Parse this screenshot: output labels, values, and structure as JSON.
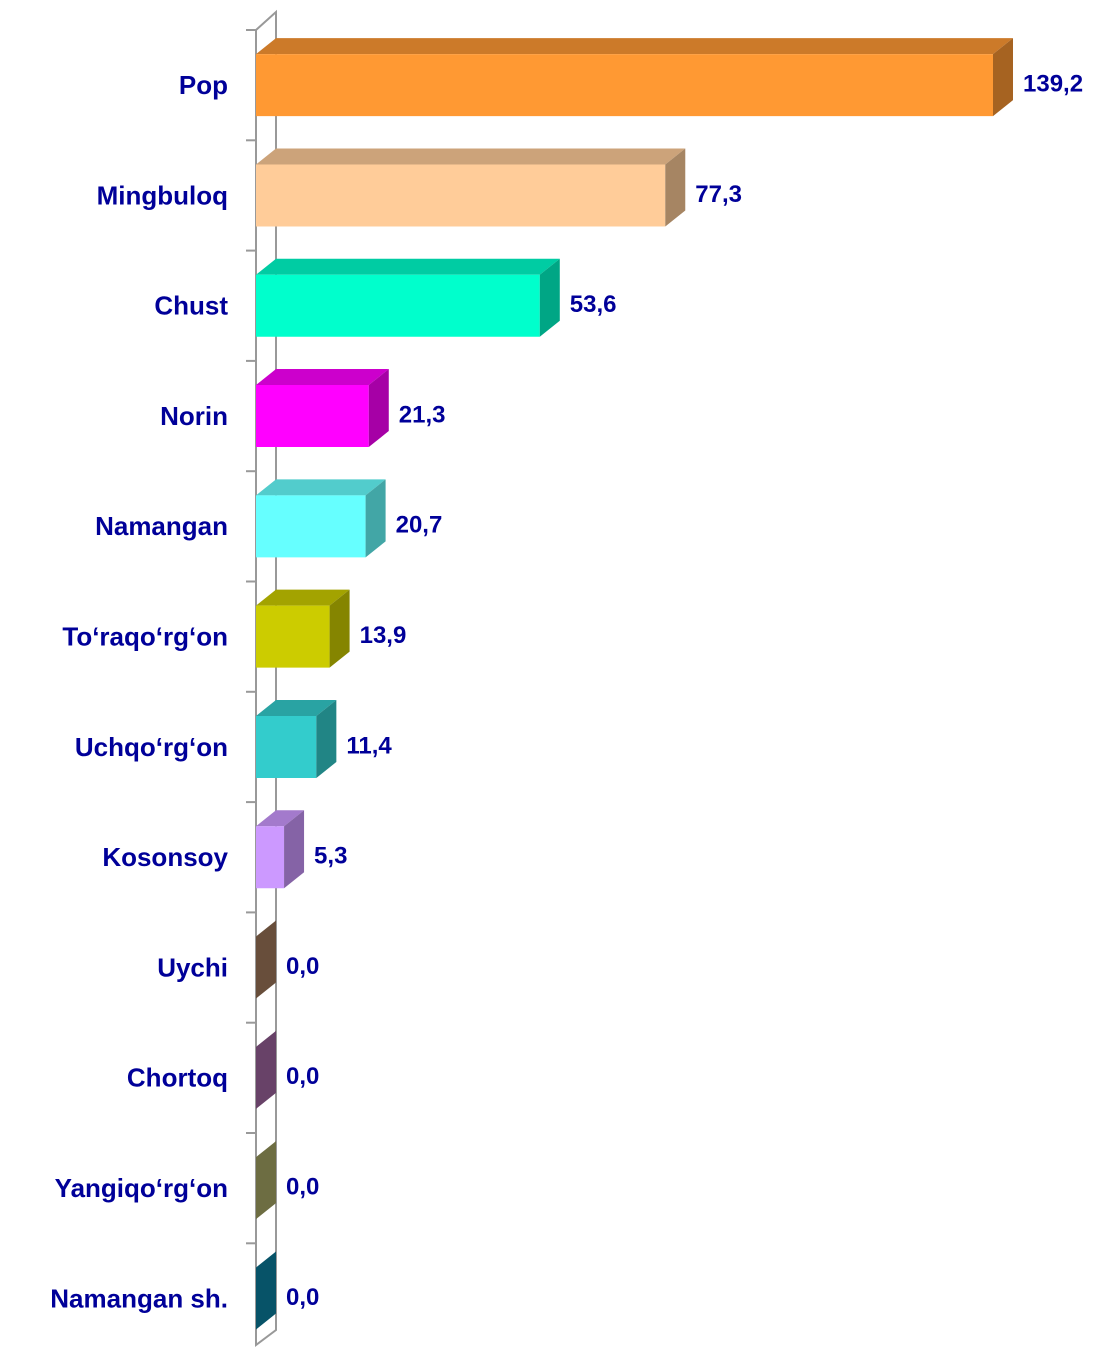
{
  "chart_data": {
    "type": "bar",
    "orientation": "horizontal",
    "categories": [
      "Pop",
      "Mingbuloq",
      "Chust",
      "Norin",
      "Namangan",
      "To‘raqo‘rg‘on",
      "Uchqo‘rg‘on",
      "Kosonsoy",
      "Uychi",
      "Chortoq",
      "Yangiqo‘rg‘on",
      "Namangan sh."
    ],
    "values": [
      139.2,
      77.3,
      53.6,
      21.3,
      20.7,
      13.9,
      11.4,
      5.3,
      0.0,
      0.0,
      0.0,
      0.0
    ],
    "value_labels": [
      "139,2",
      "77,3",
      "53,6",
      "21,3",
      "20,7",
      "13,9",
      "11,4",
      "5,3",
      "0,0",
      "0,0",
      "0,0",
      "0,0"
    ],
    "colors": [
      "#ff9933",
      "#ffcc99",
      "#00ffcc",
      "#ff00ff",
      "#66ffff",
      "#cccc00",
      "#33cccc",
      "#cc99ff",
      "#a0785a",
      "#a066a0",
      "#a8a866",
      "#0a7fa0"
    ]
  }
}
